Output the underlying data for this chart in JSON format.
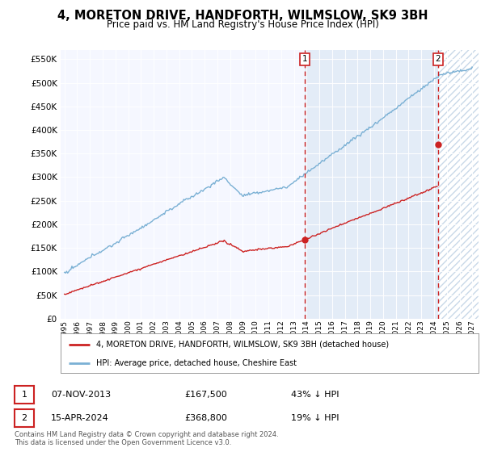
{
  "title": "4, MORETON DRIVE, HANDFORTH, WILMSLOW, SK9 3BH",
  "subtitle": "Price paid vs. HM Land Registry's House Price Index (HPI)",
  "legend_line1": "4, MORETON DRIVE, HANDFORTH, WILMSLOW, SK9 3BH (detached house)",
  "legend_line2": "HPI: Average price, detached house, Cheshire East",
  "annotation1_label": "1",
  "annotation1_date": "07-NOV-2013",
  "annotation1_price": "£167,500",
  "annotation1_hpi": "43% ↓ HPI",
  "annotation2_label": "2",
  "annotation2_date": "15-APR-2024",
  "annotation2_price": "£368,800",
  "annotation2_hpi": "19% ↓ HPI",
  "footnote": "Contains HM Land Registry data © Crown copyright and database right 2024.\nThis data is licensed under the Open Government Licence v3.0.",
  "ylim": [
    0,
    570000
  ],
  "yticks": [
    0,
    50000,
    100000,
    150000,
    200000,
    250000,
    300000,
    350000,
    400000,
    450000,
    500000,
    550000
  ],
  "hpi_color": "#7ab0d4",
  "price_color": "#cc2222",
  "dashed_line_color": "#cc2222",
  "background_color": "#ffffff",
  "plot_bg_color": "#f5f7ff",
  "shade_color": "#dce8f5",
  "hatch_color": "#c8d8e8",
  "transaction1_year": 2013.85,
  "transaction1_value": 167500,
  "transaction2_year": 2024.29,
  "transaction2_value": 368800,
  "xmin": 1995,
  "xmax": 2027
}
